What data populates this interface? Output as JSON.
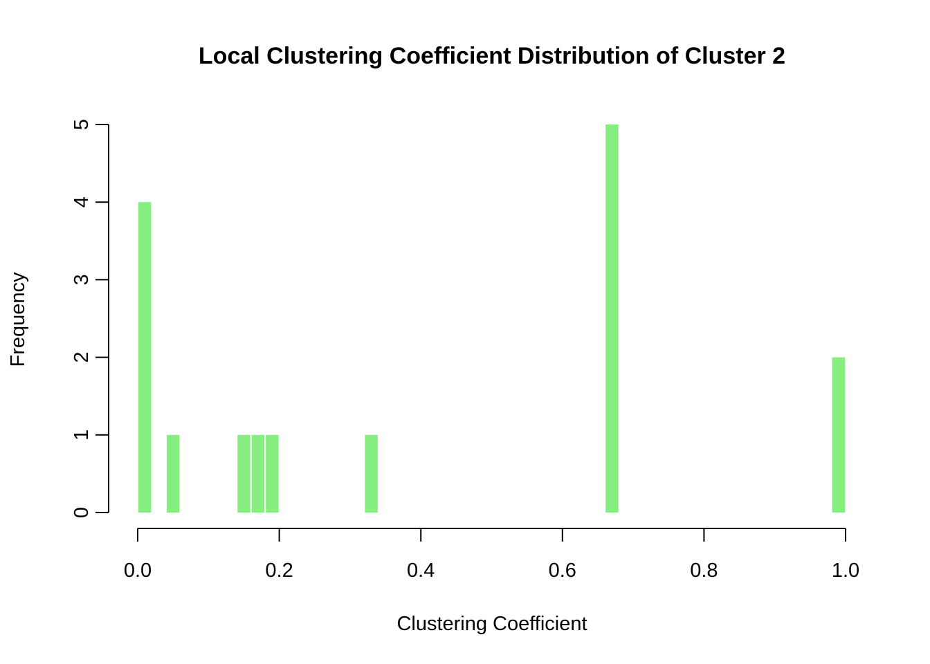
{
  "chart_data": {
    "type": "bar",
    "title": "Local Clustering Coefficient Distribution of Cluster 2",
    "xlabel": "Clustering Coefficient",
    "ylabel": "Frequency",
    "xlim": [
      0,
      1
    ],
    "ylim": [
      0,
      5
    ],
    "x_ticks": [
      "0.0",
      "0.2",
      "0.4",
      "0.6",
      "0.8",
      "1.0"
    ],
    "y_ticks": [
      "0",
      "1",
      "2",
      "3",
      "4",
      "5"
    ],
    "bar_color": "#86ee80",
    "bin_width": 0.02,
    "bars": [
      {
        "x_start": 0.0,
        "x_end": 0.02,
        "count": 4
      },
      {
        "x_start": 0.04,
        "x_end": 0.06,
        "count": 1
      },
      {
        "x_start": 0.14,
        "x_end": 0.16,
        "count": 1
      },
      {
        "x_start": 0.16,
        "x_end": 0.18,
        "count": 1
      },
      {
        "x_start": 0.18,
        "x_end": 0.2,
        "count": 1
      },
      {
        "x_start": 0.32,
        "x_end": 0.34,
        "count": 1
      },
      {
        "x_start": 0.66,
        "x_end": 0.68,
        "count": 5
      },
      {
        "x_start": 0.98,
        "x_end": 1.0,
        "count": 2
      }
    ],
    "grid": false,
    "legend": "none"
  }
}
